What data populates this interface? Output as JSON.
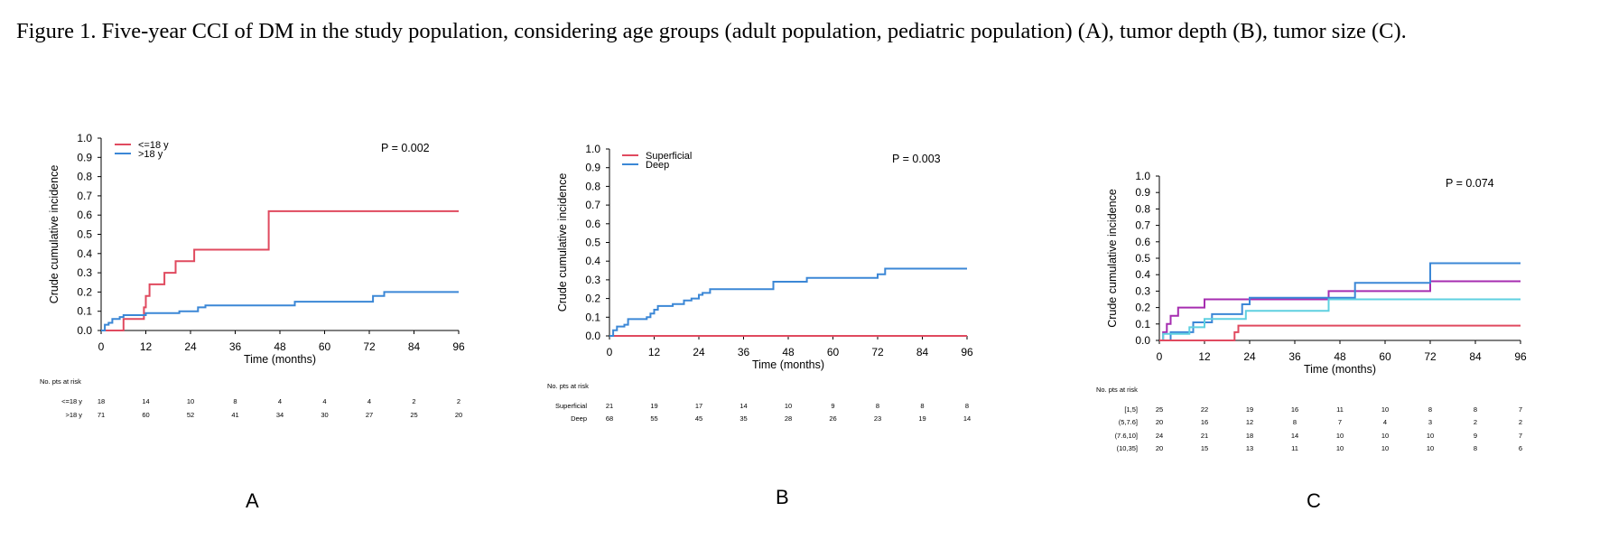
{
  "caption": "Figure 1. Five-year CCI of DM in the study population, considering age groups (adult population, pediatric population) (A), tumor depth (B), tumor size (C).",
  "chart_data": [
    {
      "type": "line",
      "panel": "A",
      "title": "",
      "xlabel": "Time (months)",
      "ylabel": "Crude cumulative incidence",
      "xlim": [
        0,
        96
      ],
      "ylim": [
        0,
        1
      ],
      "xticks": [
        "0",
        "12",
        "24",
        "36",
        "48",
        "60",
        "72",
        "84",
        "96"
      ],
      "yticks": [
        "0.0",
        "0.1",
        "0.2",
        "0.3",
        "0.4",
        "0.5",
        "0.6",
        "0.7",
        "0.8",
        "0.9",
        "1.0"
      ],
      "annotation": "P = 0.002",
      "legend_position": "top-left",
      "series": [
        {
          "name": "<=18 y",
          "color": "#e04a5f",
          "points": [
            [
              0,
              0
            ],
            [
              6,
              0.06
            ],
            [
              11,
              0.06
            ],
            [
              11.5,
              0.12
            ],
            [
              12,
              0.18
            ],
            [
              13,
              0.24
            ],
            [
              17,
              0.3
            ],
            [
              20,
              0.36
            ],
            [
              25,
              0.42
            ],
            [
              45,
              0.62
            ],
            [
              96,
              0.62
            ]
          ]
        },
        {
          "name": ">18 y",
          "color": "#3b87d6",
          "points": [
            [
              0,
              0
            ],
            [
              1,
              0.03
            ],
            [
              2,
              0.04
            ],
            [
              3,
              0.06
            ],
            [
              5,
              0.07
            ],
            [
              6,
              0.08
            ],
            [
              12,
              0.09
            ],
            [
              21,
              0.1
            ],
            [
              26,
              0.12
            ],
            [
              28,
              0.13
            ],
            [
              52,
              0.15
            ],
            [
              73,
              0.18
            ],
            [
              76,
              0.2
            ],
            [
              96,
              0.2
            ]
          ]
        }
      ],
      "risk_table": {
        "header": "No. pts at risk",
        "rows": [
          {
            "label": "<=18 y",
            "values": [
              "18",
              "14",
              "10",
              "8",
              "4",
              "4",
              "4",
              "2",
              "2"
            ]
          },
          {
            "label": ">18 y",
            "values": [
              "71",
              "60",
              "52",
              "41",
              "34",
              "30",
              "27",
              "25",
              "20"
            ]
          }
        ]
      }
    },
    {
      "type": "line",
      "panel": "B",
      "title": "",
      "xlabel": "Time (months)",
      "ylabel": "Crude cumulative incidence",
      "xlim": [
        0,
        96
      ],
      "ylim": [
        0,
        1
      ],
      "xticks": [
        "0",
        "12",
        "24",
        "36",
        "48",
        "60",
        "72",
        "84",
        "96"
      ],
      "yticks": [
        "0.0",
        "0.1",
        "0.2",
        "0.3",
        "0.4",
        "0.5",
        "0.6",
        "0.7",
        "0.8",
        "0.9",
        "1.0"
      ],
      "annotation": "P = 0.003",
      "legend_position": "top-left",
      "series": [
        {
          "name": "Superficial",
          "color": "#e04a5f",
          "points": [
            [
              0,
              0
            ],
            [
              96,
              0
            ]
          ]
        },
        {
          "name": "Deep",
          "color": "#3b87d6",
          "points": [
            [
              0,
              0
            ],
            [
              1,
              0.03
            ],
            [
              2,
              0.05
            ],
            [
              4,
              0.06
            ],
            [
              5,
              0.09
            ],
            [
              10,
              0.1
            ],
            [
              11,
              0.12
            ],
            [
              12,
              0.14
            ],
            [
              13,
              0.16
            ],
            [
              17,
              0.17
            ],
            [
              20,
              0.19
            ],
            [
              22,
              0.2
            ],
            [
              24,
              0.22
            ],
            [
              25,
              0.23
            ],
            [
              27,
              0.25
            ],
            [
              44,
              0.29
            ],
            [
              53,
              0.31
            ],
            [
              72,
              0.33
            ],
            [
              74,
              0.36
            ],
            [
              96,
              0.36
            ]
          ]
        }
      ],
      "risk_table": {
        "header": "No. pts at risk",
        "rows": [
          {
            "label": "Superficial",
            "values": [
              "21",
              "19",
              "17",
              "14",
              "10",
              "9",
              "8",
              "8",
              "8"
            ]
          },
          {
            "label": "Deep",
            "values": [
              "68",
              "55",
              "45",
              "35",
              "28",
              "26",
              "23",
              "19",
              "14"
            ]
          }
        ]
      }
    },
    {
      "type": "line",
      "panel": "C",
      "title": "",
      "xlabel": "Time (months)",
      "ylabel": "Crude cumulative incidence",
      "xlim": [
        0,
        96
      ],
      "ylim": [
        0,
        1
      ],
      "xticks": [
        "0",
        "12",
        "24",
        "36",
        "48",
        "60",
        "72",
        "84",
        "96"
      ],
      "yticks": [
        "0.0",
        "0.1",
        "0.2",
        "0.3",
        "0.4",
        "0.5",
        "0.6",
        "0.7",
        "0.8",
        "0.9",
        "1.0"
      ],
      "annotation": "P = 0.074",
      "legend_position": "none",
      "series": [
        {
          "color": "#a62db0",
          "points": [
            [
              0,
              0
            ],
            [
              1,
              0.05
            ],
            [
              2,
              0.1
            ],
            [
              3,
              0.15
            ],
            [
              5,
              0.2
            ],
            [
              12,
              0.25
            ],
            [
              45,
              0.3
            ],
            [
              72,
              0.36
            ],
            [
              96,
              0.36
            ]
          ]
        },
        {
          "color": "#3b87d6",
          "points": [
            [
              0,
              0
            ],
            [
              3,
              0.05
            ],
            [
              9,
              0.11
            ],
            [
              14,
              0.16
            ],
            [
              22,
              0.22
            ],
            [
              24,
              0.26
            ],
            [
              52,
              0.35
            ],
            [
              72,
              0.47
            ],
            [
              96,
              0.47
            ]
          ]
        },
        {
          "color": "#5fd0e0",
          "points": [
            [
              0,
              0
            ],
            [
              1,
              0.04
            ],
            [
              8,
              0.08
            ],
            [
              12,
              0.13
            ],
            [
              23,
              0.18
            ],
            [
              45,
              0.25
            ],
            [
              96,
              0.25
            ]
          ]
        },
        {
          "color": "#e04a5f",
          "points": [
            [
              0,
              0
            ],
            [
              5,
              0
            ],
            [
              20,
              0.05
            ],
            [
              21,
              0.09
            ],
            [
              96,
              0.09
            ]
          ]
        }
      ],
      "risk_table": {
        "header": "No. pts at risk",
        "rows": [
          {
            "label": "[1,5]",
            "values": [
              "25",
              "22",
              "19",
              "16",
              "11",
              "10",
              "8",
              "8",
              "7"
            ]
          },
          {
            "label": "(5,7.6]",
            "values": [
              "20",
              "16",
              "12",
              "8",
              "7",
              "4",
              "3",
              "2",
              "2"
            ]
          },
          {
            "label": "(7.6,10]",
            "values": [
              "24",
              "21",
              "18",
              "14",
              "10",
              "10",
              "10",
              "9",
              "7"
            ]
          },
          {
            "label": "(10,35]",
            "values": [
              "20",
              "15",
              "13",
              "11",
              "10",
              "10",
              "10",
              "8",
              "6"
            ]
          }
        ]
      }
    }
  ]
}
